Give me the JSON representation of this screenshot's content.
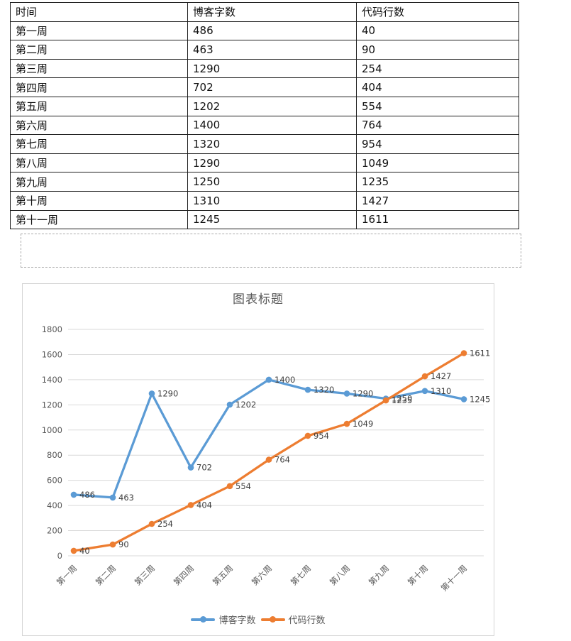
{
  "table": {
    "headers": [
      "时间",
      "博客字数",
      "代码行数"
    ],
    "rows": [
      [
        "第一周",
        "486",
        "40"
      ],
      [
        "第二周",
        "463",
        "90"
      ],
      [
        "第三周",
        "1290",
        "254"
      ],
      [
        "第四周",
        "702",
        "404"
      ],
      [
        "第五周",
        "1202",
        "554"
      ],
      [
        "第六周",
        "1400",
        "764"
      ],
      [
        "第七周",
        "1320",
        "954"
      ],
      [
        "第八周",
        "1290",
        "1049"
      ],
      [
        "第九周",
        "1250",
        "1235"
      ],
      [
        "第十周",
        "1310",
        "1427"
      ],
      [
        "第十一周",
        "1245",
        "1611"
      ]
    ]
  },
  "chart_data": {
    "type": "line",
    "title": "图表标题",
    "categories": [
      "第一周",
      "第二周",
      "第三周",
      "第四周",
      "第五周",
      "第六周",
      "第七周",
      "第八周",
      "第九周",
      "第十周",
      "第十一周"
    ],
    "series": [
      {
        "name": "博客字数",
        "color": "#5B9BD5",
        "values": [
          486,
          463,
          1290,
          702,
          1202,
          1400,
          1320,
          1290,
          1250,
          1310,
          1245
        ]
      },
      {
        "name": "代码行数",
        "color": "#ED7D31",
        "values": [
          40,
          90,
          254,
          404,
          554,
          764,
          954,
          1049,
          1235,
          1427,
          1611
        ]
      }
    ],
    "ylim": [
      0,
      1800
    ],
    "ytick_step": 200,
    "grid": true,
    "data_labels": true,
    "legend_position": "bottom",
    "grid_color": "#D9D9D9",
    "axis_text_color": "#595959",
    "title_color": "#595959",
    "data_label_color": "#404040"
  }
}
